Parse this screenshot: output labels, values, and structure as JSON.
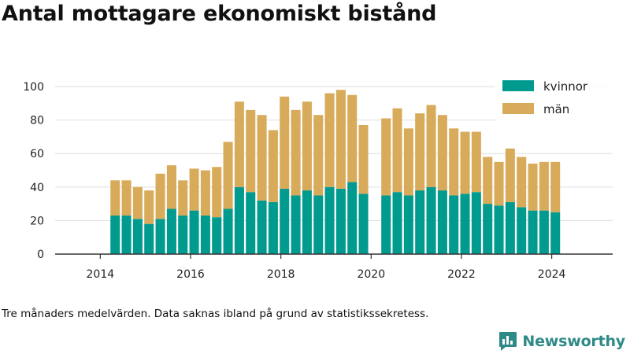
{
  "title": "Antal mottagare ekonomiskt bistånd",
  "footnote": "Tre månaders medelvärden. Data saknas ibland på grund av statistikssekretess.",
  "brand": {
    "name": "Newsworthy",
    "icon": "newsworthy-logo-icon",
    "color": "#2e8a86"
  },
  "chart_data": {
    "type": "bar",
    "stacked": true,
    "title": "Antal mottagare ekonomiskt bistånd",
    "xlabel": "",
    "ylabel": "",
    "xlim": [
      2013.0,
      2025.35
    ],
    "ylim": [
      0,
      100
    ],
    "yticks": [
      0,
      20,
      40,
      60,
      80,
      100
    ],
    "xticks": [
      2014,
      2016,
      2018,
      2020,
      2022,
      2024
    ],
    "grid": "horizontal",
    "legend_position": "top-right",
    "bar_width_years": 0.21,
    "x": [
      2014.33,
      2014.58,
      2014.83,
      2015.08,
      2015.33,
      2015.58,
      2015.83,
      2016.08,
      2016.33,
      2016.58,
      2016.83,
      2017.08,
      2017.33,
      2017.58,
      2017.83,
      2018.08,
      2018.33,
      2018.58,
      2018.83,
      2019.08,
      2019.33,
      2019.58,
      2019.83,
      2020.08,
      2020.33,
      2020.58,
      2020.83,
      2021.08,
      2021.33,
      2021.58,
      2021.83,
      2022.08,
      2022.33,
      2022.58,
      2022.83,
      2023.08,
      2023.33,
      2023.58,
      2023.83,
      2024.08
    ],
    "series": [
      {
        "name": "kvinnor",
        "color": "#009a8e",
        "values": [
          23,
          23,
          21,
          18,
          21,
          27,
          23,
          26,
          23,
          22,
          27,
          40,
          37,
          32,
          31,
          39,
          35,
          38,
          35,
          40,
          39,
          43,
          36,
          null,
          35,
          37,
          35,
          38,
          40,
          38,
          35,
          36,
          37,
          30,
          29,
          31,
          28,
          26,
          26,
          25
        ]
      },
      {
        "name": "män",
        "color": "#d8ab5b",
        "values": [
          21,
          21,
          19,
          20,
          27,
          26,
          21,
          25,
          27,
          30,
          40,
          51,
          49,
          51,
          43,
          55,
          51,
          53,
          48,
          56,
          59,
          52,
          41,
          null,
          46,
          50,
          40,
          46,
          49,
          45,
          40,
          37,
          36,
          28,
          26,
          32,
          30,
          28,
          29,
          30
        ]
      }
    ]
  }
}
